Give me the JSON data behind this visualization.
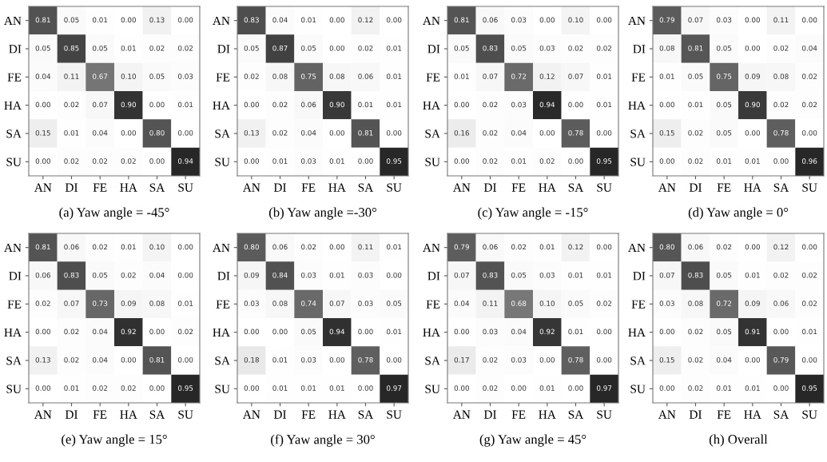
{
  "chart_data": [
    {
      "type": "heatmap",
      "xlabel": "(a) Yaw angle = -45°",
      "categories": [
        "AN",
        "DI",
        "FE",
        "HA",
        "SA",
        "SU"
      ],
      "y_categories": [
        "AN",
        "DI",
        "FE",
        "HA",
        "SA",
        "SU"
      ],
      "cells": [
        [
          0.81,
          0.05,
          0.01,
          0.0,
          0.13,
          0.0
        ],
        [
          0.05,
          0.85,
          0.05,
          0.01,
          0.02,
          0.02
        ],
        [
          0.04,
          0.11,
          0.67,
          0.1,
          0.05,
          0.03
        ],
        [
          0.0,
          0.02,
          0.07,
          0.9,
          0.0,
          0.01
        ],
        [
          0.15,
          0.01,
          0.04,
          0.0,
          0.8,
          0.0
        ],
        [
          0.0,
          0.02,
          0.02,
          0.02,
          0.0,
          0.94
        ]
      ],
      "cell_labels": [
        [
          "0.81",
          "0.05",
          "0.01",
          "0.00",
          "0.13",
          "0.00"
        ],
        [
          "0.05",
          "0.85",
          "0.05",
          "0.01",
          "0.02",
          "0.02"
        ],
        [
          "0.04",
          "0.11",
          "0.67",
          "0.10",
          "0.05",
          "0.03"
        ],
        [
          "0.00",
          "0.02",
          "0.07",
          "0.90",
          "0.00",
          "0.01"
        ],
        [
          "0.15",
          "0.01",
          "0.04",
          "0.00",
          "0.80",
          "0.00"
        ],
        [
          "0.00",
          "0.02",
          "0.02",
          "0.02",
          "0.00",
          "0.94"
        ]
      ]
    },
    {
      "type": "heatmap",
      "xlabel": "(b) Yaw angle =-30°",
      "categories": [
        "AN",
        "DI",
        "FE",
        "HA",
        "SA",
        "SU"
      ],
      "y_categories": [
        "AN",
        "DI",
        "FE",
        "HA",
        "SA",
        "SU"
      ],
      "cells": [
        [
          0.83,
          0.04,
          0.01,
          0.0,
          0.12,
          0.0
        ],
        [
          0.05,
          0.87,
          0.05,
          0.0,
          0.02,
          0.01
        ],
        [
          0.02,
          0.08,
          0.75,
          0.08,
          0.06,
          0.01
        ],
        [
          0.0,
          0.02,
          0.06,
          0.9,
          0.01,
          0.01
        ],
        [
          0.13,
          0.02,
          0.04,
          0.0,
          0.81,
          0.0
        ],
        [
          0.0,
          0.01,
          0.03,
          0.01,
          0.0,
          0.95
        ]
      ],
      "cell_labels": [
        [
          "0.83",
          "0.04",
          "0.01",
          "0.00",
          "0.12",
          "0.00"
        ],
        [
          "0.05",
          "0.87",
          "0.05",
          "0.00",
          "0.02",
          "0.01"
        ],
        [
          "0.02",
          "0.08",
          "0.75",
          "0.08",
          "0.06",
          "0.01"
        ],
        [
          "0.00",
          "0.02",
          "0.06",
          "0.90",
          "0.01",
          "0.01"
        ],
        [
          "0.13",
          "0.02",
          "0.04",
          "0.00",
          "0.81",
          "0.00"
        ],
        [
          "0.00",
          "0.01",
          "0.03",
          "0.01",
          "0.00",
          "0.95"
        ]
      ]
    },
    {
      "type": "heatmap",
      "xlabel": "(c) Yaw angle = -15°",
      "categories": [
        "AN",
        "DI",
        "FE",
        "HA",
        "SA",
        "SU"
      ],
      "y_categories": [
        "AN",
        "DI",
        "FE",
        "HA",
        "SA",
        "SU"
      ],
      "cells": [
        [
          0.81,
          0.06,
          0.03,
          0.0,
          0.1,
          0.0
        ],
        [
          0.05,
          0.83,
          0.05,
          0.03,
          0.02,
          0.02
        ],
        [
          0.01,
          0.07,
          0.72,
          0.12,
          0.07,
          0.01
        ],
        [
          0.0,
          0.02,
          0.03,
          0.94,
          0.0,
          0.01
        ],
        [
          0.16,
          0.02,
          0.04,
          0.0,
          0.78,
          0.0
        ],
        [
          0.0,
          0.02,
          0.01,
          0.02,
          0.0,
          0.95
        ]
      ],
      "cell_labels": [
        [
          "0.81",
          "0.06",
          "0.03",
          "0.00",
          "0.10",
          "0.00"
        ],
        [
          "0.05",
          "0.83",
          "0.05",
          "0.03",
          "0.02",
          "0.02"
        ],
        [
          "0.01",
          "0.07",
          "0.72",
          "0.12",
          "0.07",
          "0.01"
        ],
        [
          "0.00",
          "0.02",
          "0.03",
          "0.94",
          "0.00",
          "0.01"
        ],
        [
          "0.16",
          "0.02",
          "0.04",
          "0.00",
          "0.78",
          "0.00"
        ],
        [
          "0.00",
          "0.02",
          "0.01",
          "0.02",
          "0.00",
          "0.95"
        ]
      ]
    },
    {
      "type": "heatmap",
      "xlabel": "(d) Yaw angle = 0°",
      "categories": [
        "AN",
        "DI",
        "FE",
        "HA",
        "SA",
        "SU"
      ],
      "y_categories": [
        "AN",
        "DI",
        "FE",
        "HA",
        "SA",
        "SU"
      ],
      "cells": [
        [
          0.79,
          0.07,
          0.03,
          0.0,
          0.11,
          0.0
        ],
        [
          0.08,
          0.81,
          0.05,
          0.0,
          0.02,
          0.04
        ],
        [
          0.01,
          0.05,
          0.75,
          0.09,
          0.08,
          0.02
        ],
        [
          0.0,
          0.01,
          0.05,
          0.9,
          0.02,
          0.02
        ],
        [
          0.15,
          0.02,
          0.05,
          0.0,
          0.78,
          0.0
        ],
        [
          0.0,
          0.02,
          0.01,
          0.01,
          0.0,
          0.96
        ]
      ],
      "cell_labels": [
        [
          "0.79",
          "0.07",
          "0.03",
          "0.00",
          "0.11",
          "0.00"
        ],
        [
          "0.08",
          "0.81",
          "0.05",
          "0.00",
          "0.02",
          "0.04"
        ],
        [
          "0.01",
          "0.05",
          "0.75",
          "0.09",
          "0.08",
          "0.02"
        ],
        [
          "0.00",
          "0.01",
          "0.05",
          "0.90",
          "0.02",
          "0.02"
        ],
        [
          "0.15",
          "0.02",
          "0.05",
          "0.00",
          "0.78",
          "0.00"
        ],
        [
          "0.00",
          "0.02",
          "0.01",
          "0.01",
          "0.00",
          "0.96"
        ]
      ]
    },
    {
      "type": "heatmap",
      "xlabel": "(e) Yaw angle = 15°",
      "categories": [
        "AN",
        "DI",
        "FE",
        "HA",
        "SA",
        "SU"
      ],
      "y_categories": [
        "AN",
        "DI",
        "FE",
        "HA",
        "SA",
        "SU"
      ],
      "cells": [
        [
          0.81,
          0.06,
          0.02,
          0.01,
          0.1,
          0.0
        ],
        [
          0.06,
          0.83,
          0.05,
          0.02,
          0.04,
          0.0
        ],
        [
          0.02,
          0.07,
          0.73,
          0.09,
          0.08,
          0.01
        ],
        [
          0.0,
          0.02,
          0.04,
          0.92,
          0.0,
          0.02
        ],
        [
          0.13,
          0.02,
          0.04,
          0.0,
          0.81,
          0.0
        ],
        [
          0.0,
          0.01,
          0.02,
          0.02,
          0.0,
          0.95
        ]
      ],
      "cell_labels": [
        [
          "0.81",
          "0.06",
          "0.02",
          "0.01",
          "0.10",
          "0.00"
        ],
        [
          "0.06",
          "0.83",
          "0.05",
          "0.02",
          "0.04",
          "0.00"
        ],
        [
          "0.02",
          "0.07",
          "0.73",
          "0.09",
          "0.08",
          "0.01"
        ],
        [
          "0.00",
          "0.02",
          "0.04",
          "0.92",
          "0.00",
          "0.02"
        ],
        [
          "0.13",
          "0.02",
          "0.04",
          "0.00",
          "0.81",
          "0.00"
        ],
        [
          "0.00",
          "0.01",
          "0.02",
          "0.02",
          "0.00",
          "0.95"
        ]
      ]
    },
    {
      "type": "heatmap",
      "xlabel": "(f) Yaw angle = 30°",
      "categories": [
        "AN",
        "DI",
        "FE",
        "HA",
        "SA",
        "SU"
      ],
      "y_categories": [
        "AN",
        "DI",
        "FE",
        "HA",
        "SA",
        "SU"
      ],
      "cells": [
        [
          0.8,
          0.06,
          0.02,
          0.0,
          0.11,
          0.01
        ],
        [
          0.09,
          0.84,
          0.03,
          0.01,
          0.03,
          0.0
        ],
        [
          0.03,
          0.08,
          0.74,
          0.07,
          0.03,
          0.05
        ],
        [
          0.0,
          0.0,
          0.05,
          0.94,
          0.0,
          0.01
        ],
        [
          0.18,
          0.01,
          0.03,
          0.0,
          0.78,
          0.0
        ],
        [
          0.0,
          0.01,
          0.01,
          0.01,
          0.0,
          0.97
        ]
      ],
      "cell_labels": [
        [
          "0.80",
          "0.06",
          "0.02",
          "0.00",
          "0.11",
          "0.01"
        ],
        [
          "0.09",
          "0.84",
          "0.03",
          "0.01",
          "0.03",
          "0.00"
        ],
        [
          "0.03",
          "0.08",
          "0.74",
          "0.07",
          "0.03",
          "0.05"
        ],
        [
          "0.00",
          "0.00",
          "0.05",
          "0.94",
          "0.00",
          "0.01"
        ],
        [
          "0.18",
          "0.01",
          "0.03",
          "0.00",
          "0.78",
          "0.00"
        ],
        [
          "0.00",
          "0.01",
          "0.01",
          "0.01",
          "0.00",
          "0.97"
        ]
      ]
    },
    {
      "type": "heatmap",
      "xlabel": "(g) Yaw angle = 45°",
      "categories": [
        "AN",
        "DI",
        "FE",
        "HA",
        "SA",
        "SU"
      ],
      "y_categories": [
        "AN",
        "DI",
        "FE",
        "HA",
        "SA",
        "SU"
      ],
      "cells": [
        [
          0.79,
          0.06,
          0.02,
          0.01,
          0.12,
          0.0
        ],
        [
          0.07,
          0.83,
          0.05,
          0.03,
          0.01,
          0.01
        ],
        [
          0.04,
          0.11,
          0.68,
          0.1,
          0.05,
          0.02
        ],
        [
          0.0,
          0.03,
          0.04,
          0.92,
          0.01,
          0.0
        ],
        [
          0.17,
          0.02,
          0.03,
          0.0,
          0.78,
          0.0
        ],
        [
          0.0,
          0.02,
          0.0,
          0.01,
          0.0,
          0.97
        ]
      ],
      "cell_labels": [
        [
          "0.79",
          "0.06",
          "0.02",
          "0.01",
          "0.12",
          "0.00"
        ],
        [
          "0.07",
          "0.83",
          "0.05",
          "0.03",
          "0.01",
          "0.01"
        ],
        [
          "0.04",
          "0.11",
          "0.68",
          "0.10",
          "0.05",
          "0.02"
        ],
        [
          "0.00",
          "0.03",
          "0.04",
          "0.92",
          "0.01",
          "0.00"
        ],
        [
          "0.17",
          "0.02",
          "0.03",
          "0.00",
          "0.78",
          "0.00"
        ],
        [
          "0.00",
          "0.02",
          "0.00",
          "0.01",
          "0.00",
          "0.97"
        ]
      ]
    },
    {
      "type": "heatmap",
      "xlabel": "(h) Overall",
      "categories": [
        "AN",
        "DI",
        "FE",
        "HA",
        "SA",
        "SU"
      ],
      "y_categories": [
        "AN",
        "DI",
        "FE",
        "HA",
        "SA",
        "SU"
      ],
      "cells": [
        [
          0.8,
          0.06,
          0.02,
          0.0,
          0.12,
          0.0
        ],
        [
          0.07,
          0.83,
          0.05,
          0.01,
          0.02,
          0.02
        ],
        [
          0.03,
          0.08,
          0.72,
          0.09,
          0.06,
          0.02
        ],
        [
          0.0,
          0.02,
          0.05,
          0.91,
          0.0,
          0.01
        ],
        [
          0.15,
          0.02,
          0.04,
          0.0,
          0.79,
          0.0
        ],
        [
          0.0,
          0.02,
          0.01,
          0.01,
          0.0,
          0.95
        ]
      ],
      "cell_labels": [
        [
          "0.80",
          "0.06",
          "0.02",
          "0.00",
          "0.12",
          "0.00"
        ],
        [
          "0.07",
          "0.83",
          "0.05",
          "0.01",
          "0.02",
          "0.02"
        ],
        [
          "0.03",
          "0.08",
          "0.72",
          "0.09",
          "0.06",
          "0.02"
        ],
        [
          "0.00",
          "0.02",
          "0.05",
          "0.91",
          "0.00",
          "0.01"
        ],
        [
          "0.15",
          "0.02",
          "0.04",
          "0.00",
          "0.79",
          "0.00"
        ],
        [
          "0.00",
          "0.02",
          "0.01",
          "0.01",
          "0.00",
          "0.95"
        ]
      ]
    }
  ]
}
